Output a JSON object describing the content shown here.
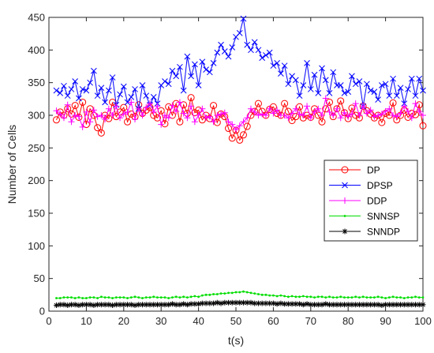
{
  "chart_data": {
    "type": "line",
    "title": "",
    "xlabel": "t(s)",
    "ylabel": "Number of Cells",
    "xlim": [
      0,
      100
    ],
    "ylim": [
      0,
      450
    ],
    "x_ticks": [
      0,
      10,
      20,
      30,
      40,
      50,
      60,
      70,
      80,
      90,
      100
    ],
    "y_ticks": [
      0,
      50,
      100,
      150,
      200,
      250,
      300,
      350,
      400,
      450
    ],
    "grid": false,
    "legend_position": "right",
    "x": [
      2,
      3,
      4,
      5,
      6,
      7,
      8,
      9,
      10,
      11,
      12,
      13,
      14,
      15,
      16,
      17,
      18,
      19,
      20,
      21,
      22,
      23,
      24,
      25,
      26,
      27,
      28,
      29,
      30,
      31,
      32,
      33,
      34,
      35,
      36,
      37,
      38,
      39,
      40,
      41,
      42,
      43,
      44,
      45,
      46,
      47,
      48,
      49,
      50,
      51,
      52,
      53,
      54,
      55,
      56,
      57,
      58,
      59,
      60,
      61,
      62,
      63,
      64,
      65,
      66,
      67,
      68,
      69,
      70,
      71,
      72,
      73,
      74,
      75,
      76,
      77,
      78,
      79,
      80,
      81,
      82,
      83,
      84,
      85,
      86,
      87,
      88,
      89,
      90,
      91,
      92,
      93,
      94,
      95,
      96,
      97,
      98,
      99,
      100
    ],
    "series": [
      {
        "name": "DP",
        "color": "#ff0000",
        "marker": "circle",
        "values": [
          293,
          305,
          300,
          310,
          302,
          315,
          297,
          320,
          286,
          310,
          300,
          281,
          273,
          300,
          295,
          320,
          298,
          305,
          312,
          290,
          302,
          298,
          316,
          303,
          308,
          312,
          300,
          296,
          307,
          287,
          313,
          300,
          318,
          290,
          316,
          303,
          327,
          304,
          308,
          293,
          300,
          295,
          315,
          289,
          302,
          298,
          280,
          265,
          277,
          262,
          270,
          283,
          300,
          306,
          318,
          306,
          300,
          309,
          313,
          303,
          300,
          318,
          306,
          292,
          298,
          313,
          296,
          300,
          297,
          310,
          300,
          290,
          310,
          320,
          298,
          310,
          322,
          304,
          295,
          311,
          300,
          296,
          314,
          307,
          302,
          296,
          300,
          289,
          303,
          300,
          319,
          293,
          300,
          308,
          297,
          303,
          301,
          316,
          284
        ]
      },
      {
        "name": "DPSP",
        "color": "#0000ff",
        "marker": "x",
        "values": [
          338,
          334,
          345,
          330,
          340,
          352,
          326,
          340,
          338,
          350,
          368,
          330,
          342,
          320,
          338,
          358,
          316,
          332,
          344,
          320,
          328,
          340,
          310,
          346,
          330,
          316,
          328,
          318,
          346,
          352,
          348,
          368,
          360,
          374,
          338,
          390,
          360,
          378,
          346,
          382,
          370,
          366,
          380,
          396,
          408,
          398,
          390,
          404,
          420,
          426,
          448,
          408,
          400,
          412,
          400,
          388,
          392,
          396,
          376,
          380,
          364,
          376,
          348,
          360,
          354,
          330,
          346,
          380,
          340,
          362,
          334,
          372,
          354,
          334,
          366,
          346,
          346,
          334,
          336,
          360,
          348,
          352,
          314,
          348,
          338,
          336,
          324,
          346,
          348,
          330,
          356,
          330,
          342,
          318,
          340,
          356,
          330,
          356,
          338
        ]
      },
      {
        "name": "DDP",
        "color": "#ff00ff",
        "marker": "plus",
        "values": [
          307,
          302,
          296,
          316,
          290,
          300,
          298,
          282,
          305,
          290,
          308,
          298,
          300,
          294,
          310,
          300,
          314,
          296,
          302,
          305,
          320,
          294,
          310,
          300,
          312,
          318,
          305,
          314,
          286,
          300,
          296,
          315,
          306,
          320,
          303,
          296,
          314,
          290,
          300,
          310,
          296,
          298,
          290,
          300,
          302,
          304,
          290,
          286,
          278,
          284,
          290,
          296,
          310,
          305,
          300,
          302,
          300,
          310,
          303,
          308,
          300,
          300,
          296,
          303,
          310,
          302,
          300,
          314,
          296,
          305,
          310,
          300,
          326,
          305,
          300,
          310,
          296,
          304,
          298,
          302,
          318,
          300,
          314,
          303,
          308,
          298,
          300,
          302,
          306,
          310,
          300,
          298,
          303,
          314,
          306,
          296,
          318,
          306,
          300
        ]
      },
      {
        "name": "SNNSP",
        "color": "#00dd00",
        "marker": "dot",
        "values": [
          20,
          20,
          21,
          21,
          21,
          20,
          21,
          20,
          20,
          21,
          21,
          20,
          22,
          21,
          21,
          20,
          21,
          21,
          21,
          20,
          21,
          22,
          21,
          20,
          21,
          21,
          22,
          21,
          21,
          21,
          20,
          21,
          22,
          21,
          22,
          21,
          22,
          23,
          22,
          24,
          25,
          25,
          26,
          26,
          27,
          27,
          28,
          28,
          29,
          29,
          30,
          29,
          28,
          27,
          26,
          25,
          25,
          24,
          24,
          23,
          24,
          23,
          22,
          23,
          22,
          22,
          23,
          22,
          22,
          21,
          22,
          22,
          21,
          22,
          21,
          21,
          22,
          21,
          21,
          21,
          22,
          21,
          22,
          21,
          21,
          21,
          22,
          21,
          20,
          21,
          22,
          21,
          21,
          20,
          21,
          21,
          22,
          21,
          21
        ]
      },
      {
        "name": "SNNDP",
        "color": "#000000",
        "marker": "star",
        "values": [
          9,
          10,
          10,
          9,
          10,
          10,
          9,
          10,
          10,
          10,
          9,
          10,
          10,
          10,
          10,
          9,
          10,
          10,
          10,
          10,
          10,
          9,
          10,
          10,
          10,
          10,
          10,
          10,
          10,
          10,
          10,
          11,
          10,
          10,
          11,
          10,
          11,
          11,
          11,
          12,
          12,
          12,
          12,
          13,
          12,
          13,
          13,
          13,
          13,
          13,
          13,
          13,
          13,
          12,
          12,
          12,
          12,
          12,
          12,
          11,
          12,
          11,
          11,
          11,
          11,
          11,
          10,
          11,
          10,
          10,
          10,
          10,
          11,
          10,
          10,
          10,
          10,
          10,
          10,
          10,
          10,
          10,
          10,
          10,
          10,
          10,
          10,
          9,
          10,
          10,
          10,
          10,
          10,
          10,
          10,
          10,
          10,
          10,
          10
        ]
      }
    ]
  }
}
